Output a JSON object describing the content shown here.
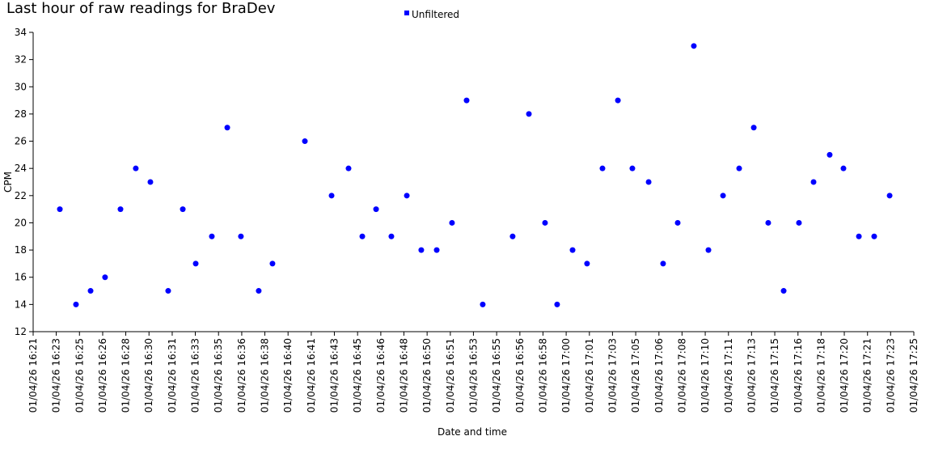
{
  "chart_data": {
    "type": "scatter",
    "title": "Last hour of raw readings for BraDev",
    "x_label": "Date and time",
    "y_label": "CPM",
    "x": [
      983.59,
      984.75,
      985.8,
      986.84,
      987.95,
      989.05,
      990.1,
      991.38,
      992.43,
      993.36,
      994.52,
      995.63,
      996.61,
      997.89,
      998.88,
      1001.21,
      1003.13,
      1004.35,
      1005.34,
      1006.33,
      1007.43,
      1008.54,
      1009.58,
      1010.69,
      1011.79,
      1012.84,
      1014.0,
      1016.15,
      1017.32,
      1018.48,
      1019.35,
      1020.46,
      1021.5,
      1022.61,
      1023.72,
      1024.76,
      1025.93,
      1026.97,
      1028.02,
      1029.18,
      1030.23,
      1031.28,
      1032.44,
      1033.49,
      1034.53,
      1035.64,
      1036.74,
      1037.79,
      1038.95,
      1039.94,
      1041.05,
      1042.15,
      1043.26
    ],
    "series": [
      {
        "name": "Unfiltered",
        "color": "#0000ff",
        "values": [
          21,
          14,
          15,
          16,
          21,
          24,
          23,
          15,
          21,
          17,
          19,
          27,
          19,
          15,
          17,
          26,
          22,
          24,
          19,
          21,
          19,
          22,
          18,
          18,
          20,
          29,
          14,
          19,
          28,
          20,
          14,
          18,
          17,
          24,
          29,
          24,
          23,
          17,
          20,
          33,
          18,
          22,
          24,
          27,
          20,
          15,
          20,
          23,
          25,
          24,
          19,
          19,
          22
        ]
      }
    ],
    "xlim": [
      981.67,
      1045
    ],
    "xticks": [
      {
        "value": 981.67,
        "label": "01/04/26 16:21"
      },
      {
        "value": 983.33,
        "label": "01/04/26 16:23"
      },
      {
        "value": 985,
        "label": "01/04/26 16:25"
      },
      {
        "value": 986.67,
        "label": "01/04/26 16:26"
      },
      {
        "value": 988.33,
        "label": "01/04/26 16:28"
      },
      {
        "value": 990,
        "label": "01/04/26 16:30"
      },
      {
        "value": 991.67,
        "label": "01/04/26 16:31"
      },
      {
        "value": 993.33,
        "label": "01/04/26 16:33"
      },
      {
        "value": 995,
        "label": "01/04/26 16:35"
      },
      {
        "value": 996.67,
        "label": "01/04/26 16:36"
      },
      {
        "value": 998.33,
        "label": "01/04/26 16:38"
      },
      {
        "value": 1000,
        "label": "01/04/26 16:40"
      },
      {
        "value": 1001.67,
        "label": "01/04/26 16:41"
      },
      {
        "value": 1003.33,
        "label": "01/04/26 16:43"
      },
      {
        "value": 1005,
        "label": "01/04/26 16:45"
      },
      {
        "value": 1006.67,
        "label": "01/04/26 16:46"
      },
      {
        "value": 1008.33,
        "label": "01/04/26 16:48"
      },
      {
        "value": 1010,
        "label": "01/04/26 16:50"
      },
      {
        "value": 1011.67,
        "label": "01/04/26 16:51"
      },
      {
        "value": 1013.33,
        "label": "01/04/26 16:53"
      },
      {
        "value": 1015,
        "label": "01/04/26 16:55"
      },
      {
        "value": 1016.67,
        "label": "01/04/26 16:56"
      },
      {
        "value": 1018.33,
        "label": "01/04/26 16:58"
      },
      {
        "value": 1020,
        "label": "01/04/26 17:00"
      },
      {
        "value": 1021.67,
        "label": "01/04/26 17:01"
      },
      {
        "value": 1023.33,
        "label": "01/04/26 17:03"
      },
      {
        "value": 1025,
        "label": "01/04/26 17:05"
      },
      {
        "value": 1026.67,
        "label": "01/04/26 17:06"
      },
      {
        "value": 1028.33,
        "label": "01/04/26 17:08"
      },
      {
        "value": 1030,
        "label": "01/04/26 17:10"
      },
      {
        "value": 1031.67,
        "label": "01/04/26 17:11"
      },
      {
        "value": 1033.33,
        "label": "01/04/26 17:13"
      },
      {
        "value": 1035,
        "label": "01/04/26 17:15"
      },
      {
        "value": 1036.67,
        "label": "01/04/26 17:16"
      },
      {
        "value": 1038.33,
        "label": "01/04/26 17:18"
      },
      {
        "value": 1040,
        "label": "01/04/26 17:20"
      },
      {
        "value": 1041.67,
        "label": "01/04/26 17:21"
      },
      {
        "value": 1043.33,
        "label": "01/04/26 17:23"
      },
      {
        "value": 1045,
        "label": "01/04/26 17:25"
      }
    ],
    "ylim": [
      12,
      34
    ],
    "yticks": [
      12,
      14,
      16,
      18,
      20,
      22,
      24,
      26,
      28,
      30,
      32,
      34
    ],
    "grid": false,
    "legend": "top"
  }
}
